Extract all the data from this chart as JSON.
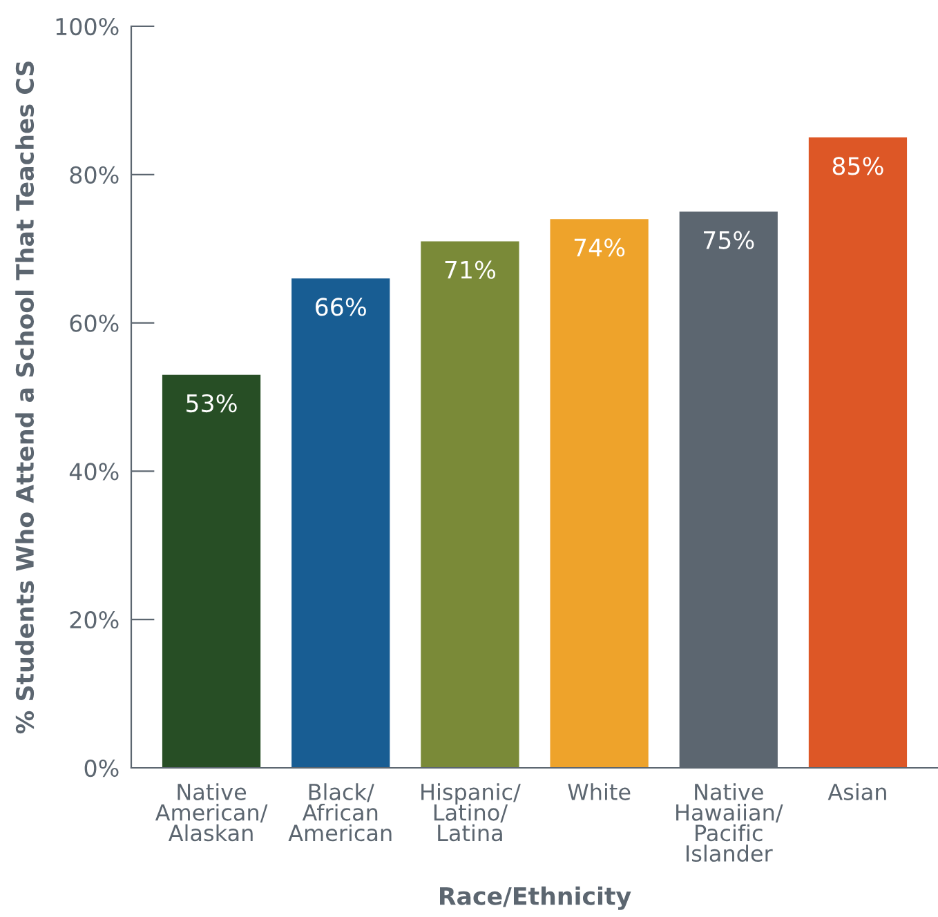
{
  "chart_data": {
    "type": "bar",
    "xlabel": "Race/Ethnicity",
    "ylabel": "% Students Who Attend a School That Teaches CS",
    "categories": [
      "Native\nAmerican/\nAlaskan",
      "Black/\nAfrican\nAmerican",
      "Hispanic/\nLatino/\nLatina",
      "White",
      "Native\nHawaiian/\nPacific\nIslander",
      "Asian"
    ],
    "values": [
      53,
      66,
      71,
      74,
      75,
      85
    ],
    "value_labels": [
      "53%",
      "66%",
      "71%",
      "74%",
      "75%",
      "85%"
    ],
    "colors": [
      "#274e25",
      "#185d93",
      "#7a8a38",
      "#eea32b",
      "#5c6670",
      "#dd5726"
    ],
    "ylim": [
      0,
      100
    ],
    "yticks": [
      {
        "value": 0,
        "label": "0%"
      },
      {
        "value": 20,
        "label": "20%"
      },
      {
        "value": 40,
        "label": "40%"
      },
      {
        "value": 60,
        "label": "60%"
      },
      {
        "value": 80,
        "label": "80%"
      },
      {
        "value": 100,
        "label": "100%"
      }
    ],
    "grid": false,
    "legend": false
  }
}
